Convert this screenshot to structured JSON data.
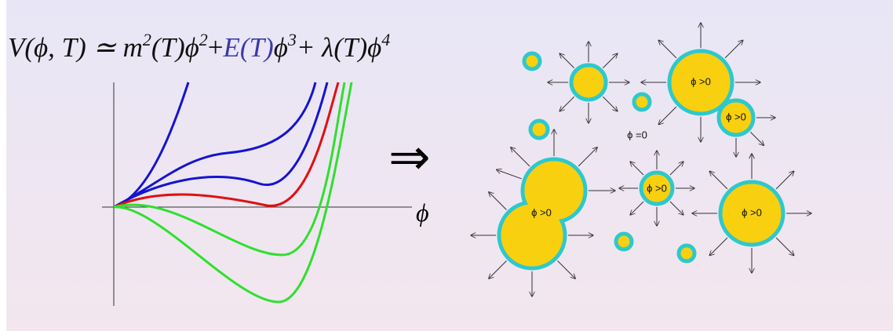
{
  "equation": {
    "parts": [
      "V(ϕ, T) ≃ m",
      "2",
      "(T)ϕ",
      "2",
      "+",
      "E(T)",
      "ϕ",
      "3",
      "+ λ(T)ϕ",
      "4"
    ]
  },
  "axis_label": "ϕ",
  "implies": "⇒",
  "bubble_labels": [
    "ϕ >0",
    "ϕ >0",
    "ϕ >0",
    "ϕ >0",
    "ϕ >0"
  ],
  "outside_label": "ϕ =0"
}
